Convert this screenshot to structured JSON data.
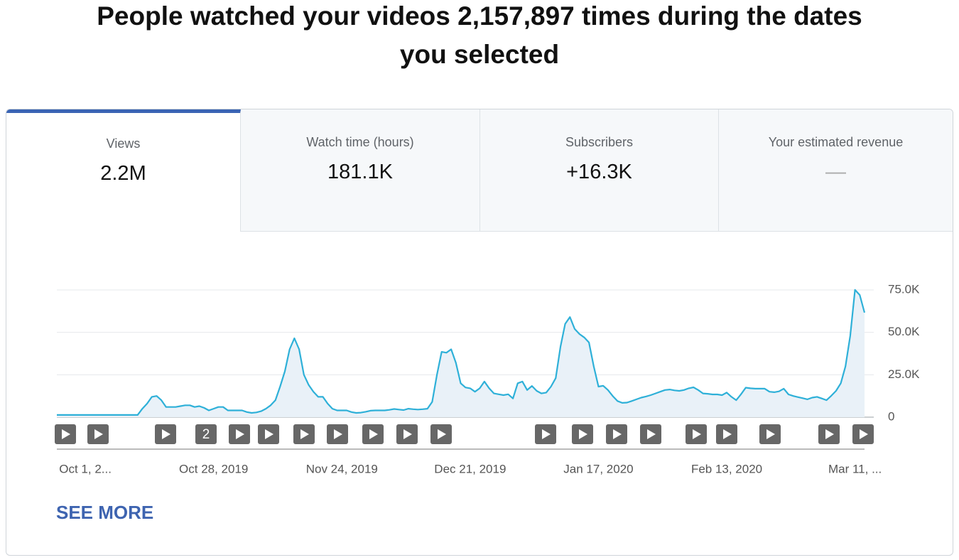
{
  "header": {
    "title_line1": "People watched your videos 2,157,897 times during the dates",
    "title_line2": "you selected"
  },
  "tabs": [
    {
      "label": "Views",
      "value": "2.2M"
    },
    {
      "label": "Watch time (hours)",
      "value": "181.1K"
    },
    {
      "label": "Subscribers",
      "value": "+16.3K"
    },
    {
      "label": "Your estimated revenue",
      "value": "—"
    }
  ],
  "chart_data": {
    "type": "line",
    "color": "#2eb0d8",
    "fill": "#e9f1f8",
    "grid": true,
    "ylim": [
      0,
      80000
    ],
    "yticks": [
      0,
      {
        "value": 25000,
        "label": "25.0K"
      },
      {
        "value": 50000,
        "label": "50.0K"
      },
      {
        "value": 75000,
        "label": "75.0K"
      }
    ],
    "categories": [
      null,
      null,
      null,
      null,
      null,
      null,
      "Oct 1, 2...",
      null,
      null,
      null,
      null,
      null,
      null,
      null,
      null,
      null,
      null,
      null,
      null,
      null,
      null,
      null,
      null,
      null,
      null,
      null,
      null,
      null,
      null,
      null,
      null,
      null,
      null,
      "Oct 28, 2019",
      null,
      null,
      null,
      null,
      null,
      null,
      null,
      null,
      null,
      null,
      null,
      null,
      null,
      null,
      null,
      null,
      null,
      null,
      null,
      null,
      null,
      null,
      null,
      null,
      null,
      null,
      "Nov 24, 2019",
      null,
      null,
      null,
      null,
      null,
      null,
      null,
      null,
      null,
      null,
      null,
      null,
      null,
      null,
      null,
      null,
      null,
      null,
      null,
      null,
      null,
      null,
      null,
      null,
      null,
      null,
      "Dec 21, 2019",
      null,
      null,
      null,
      null,
      null,
      null,
      null,
      null,
      null,
      null,
      null,
      null,
      null,
      null,
      null,
      null,
      null,
      null,
      null,
      null,
      null,
      null,
      null,
      null,
      null,
      null,
      "Jan 17, 2020",
      null,
      null,
      null,
      null,
      null,
      null,
      null,
      null,
      null,
      null,
      null,
      null,
      null,
      null,
      null,
      null,
      null,
      null,
      null,
      null,
      null,
      null,
      null,
      null,
      null,
      null,
      "Feb 13, 2020",
      null,
      null,
      null,
      null,
      null,
      null,
      null,
      null,
      null,
      null,
      null,
      null,
      null,
      null,
      null,
      null,
      null,
      null,
      null,
      null,
      null,
      null,
      null,
      null,
      null,
      null,
      "Mar 11, ...",
      null,
      null
    ],
    "values": [
      1300,
      1300,
      1300,
      1300,
      1300,
      1300,
      1300,
      1300,
      1300,
      1300,
      1300,
      1300,
      1300,
      1300,
      1300,
      1300,
      1300,
      1300,
      5000,
      8000,
      12000,
      12500,
      10000,
      6000,
      6000,
      6000,
      6500,
      7000,
      7000,
      6000,
      6500,
      5500,
      4000,
      5000,
      6000,
      6000,
      4000,
      4000,
      4000,
      4000,
      3000,
      2500,
      2800,
      3500,
      5000,
      7000,
      10000,
      18000,
      27000,
      40000,
      46500,
      40000,
      25000,
      19000,
      15000,
      12000,
      12000,
      8000,
      5000,
      4000,
      4000,
      4000,
      3000,
      2500,
      2700,
      3200,
      3800,
      4000,
      4000,
      4000,
      4300,
      4800,
      4500,
      4200,
      5000,
      4700,
      4500,
      4700,
      5000,
      9000,
      25000,
      38500,
      38000,
      40000,
      32000,
      20000,
      17500,
      17000,
      15000,
      17000,
      21000,
      17000,
      14000,
      13500,
      13000,
      13500,
      11000,
      20000,
      21000,
      16000,
      18400,
      15500,
      14000,
      14500,
      18000,
      23000,
      41500,
      55000,
      59000,
      52000,
      49000,
      47000,
      44000,
      30000,
      18000,
      18500,
      16000,
      12500,
      9500,
      8400,
      8600,
      9500,
      10500,
      11500,
      12200,
      13000,
      14000,
      15000,
      16000,
      16300,
      15800,
      15500,
      16000,
      17000,
      17600,
      16000,
      14000,
      13800,
      13400,
      13400,
      13000,
      14500,
      12000,
      10000,
      13500,
      17400,
      17000,
      16800,
      16800,
      16800,
      15000,
      14700,
      15200,
      16800,
      13400,
      12500,
      11800,
      11200,
      10500,
      11500,
      12000,
      11000,
      10000,
      12600,
      15500,
      20000,
      30000,
      48000,
      75000,
      72000,
      61600
    ]
  },
  "video_marker_label": "2",
  "see_more": "SEE MORE"
}
